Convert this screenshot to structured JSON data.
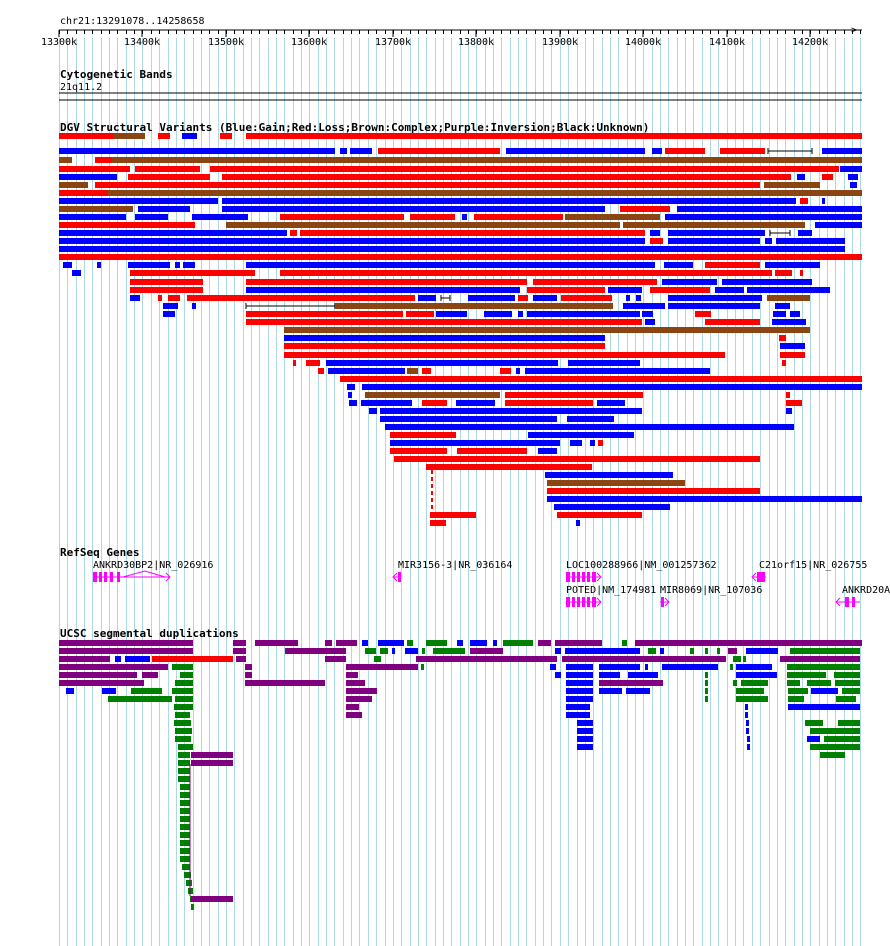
{
  "region": {
    "label": "chr21:13291078..14258658",
    "start_kb": 13300,
    "end_kb": 14262
  },
  "ruler": {
    "ticks": [
      "13300k",
      "13400k",
      "13500k",
      "13600k",
      "13700k",
      "13800k",
      "13900k",
      "14000k",
      "14100k",
      "14200k"
    ]
  },
  "colors": {
    "grid": "#add8e6",
    "gain": "#0000ff",
    "loss": "#ff0000",
    "complex": "#8b4513",
    "inversion": "#800080",
    "unknown": "#000000",
    "dup_green": "#008000",
    "gene": "#ff00ff"
  },
  "tracks": {
    "cytobands": {
      "title": "Cytogenetic Bands",
      "band": "21q11.2"
    },
    "dgv": {
      "title": "DGV Structural Variants (Blue:Gain;Red:Loss;Brown:Complex;Purple:Inversion;Black:Unknown)"
    },
    "refseq": {
      "title": "RefSeq Genes",
      "genes": [
        {
          "label": "ANKRD30BP2|NR_026916"
        },
        {
          "label": "MIR3156-3|NR_036164"
        },
        {
          "label": "LOC100288966|NM_001257362"
        },
        {
          "label": "C21orf15|NR_026755"
        },
        {
          "label": "POTED|NM_174981"
        },
        {
          "label": "MIR8069|NR_107036"
        },
        {
          "label": "ANKRD20A"
        }
      ]
    },
    "segdups": {
      "title": "UCSC segmental duplications"
    }
  }
}
